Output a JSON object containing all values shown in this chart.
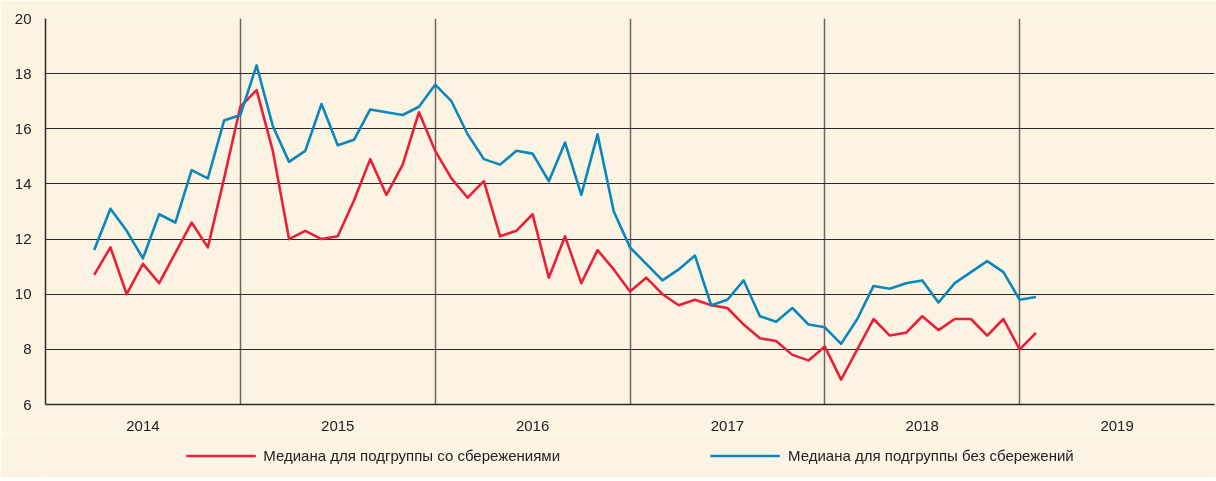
{
  "chart_data": {
    "type": "line",
    "x": [
      "2014-04",
      "2014-05",
      "2014-06",
      "2014-07",
      "2014-08",
      "2014-09",
      "2014-10",
      "2014-11",
      "2014-12",
      "2015-01",
      "2015-02",
      "2015-03",
      "2015-04",
      "2015-05",
      "2015-06",
      "2015-07",
      "2015-08",
      "2015-09",
      "2015-10",
      "2015-11",
      "2015-12",
      "2016-01",
      "2016-02",
      "2016-03",
      "2016-04",
      "2016-05",
      "2016-06",
      "2016-07",
      "2016-08",
      "2016-09",
      "2016-10",
      "2016-11",
      "2016-12",
      "2017-01",
      "2017-02",
      "2017-03",
      "2017-04",
      "2017-05",
      "2017-06",
      "2017-07",
      "2017-08",
      "2017-09",
      "2017-10",
      "2017-11",
      "2017-12",
      "2018-01",
      "2018-02",
      "2018-03",
      "2018-04",
      "2018-05",
      "2018-06",
      "2018-07",
      "2018-08",
      "2018-09",
      "2018-10",
      "2018-11",
      "2018-12",
      "2019-01",
      "2019-02"
    ],
    "series": [
      {
        "name": "Медиана для подгруппы со сбережениями",
        "color": "#e8203a",
        "values": [
          10.7,
          11.7,
          10.0,
          11.1,
          10.4,
          11.5,
          12.6,
          11.7,
          14.2,
          16.8,
          17.4,
          15.2,
          12.0,
          12.3,
          12.0,
          12.1,
          13.4,
          14.9,
          13.6,
          14.7,
          16.6,
          15.2,
          14.2,
          13.5,
          14.1,
          12.1,
          12.3,
          12.9,
          10.6,
          12.1,
          10.4,
          11.6,
          10.9,
          10.1,
          10.6,
          10.0,
          9.6,
          9.8,
          9.6,
          9.5,
          8.9,
          8.4,
          8.3,
          7.8,
          7.6,
          8.1,
          6.9,
          8.0,
          9.1,
          8.5,
          8.6,
          9.2,
          8.7,
          9.1,
          9.1,
          8.5,
          9.1,
          8.0,
          8.6
        ]
      },
      {
        "name": "Медиана для подгруппы без сбережений",
        "color": "#0a87bd",
        "values": [
          11.6,
          13.1,
          12.3,
          11.3,
          12.9,
          12.6,
          14.5,
          14.2,
          16.3,
          16.5,
          18.3,
          16.1,
          14.8,
          15.2,
          16.9,
          15.4,
          15.6,
          16.7,
          16.6,
          16.5,
          16.8,
          17.6,
          17.0,
          15.8,
          14.9,
          14.7,
          15.2,
          15.1,
          14.1,
          15.5,
          13.6,
          15.8,
          13.0,
          11.7,
          11.1,
          10.5,
          10.9,
          11.4,
          9.6,
          9.8,
          10.5,
          9.2,
          9.0,
          9.5,
          8.9,
          8.8,
          8.2,
          9.1,
          10.3,
          10.2,
          10.4,
          10.5,
          9.7,
          10.4,
          10.8,
          11.2,
          10.8,
          9.8,
          9.9
        ]
      }
    ],
    "xlim": [
      "2014",
      "2020"
    ],
    "xticks": [
      {
        "value": "2014",
        "label": null
      },
      {
        "value": "2014-07-01",
        "label": "2014"
      },
      {
        "value": "2015",
        "label": null
      },
      {
        "value": "2015-07-01",
        "label": "2015"
      },
      {
        "value": "2016",
        "label": null
      },
      {
        "value": "2016-07-01",
        "label": "2016"
      },
      {
        "value": "2017",
        "label": null
      },
      {
        "value": "2017-07-01",
        "label": "2017"
      },
      {
        "value": "2018",
        "label": null
      },
      {
        "value": "2018-07-01",
        "label": "2018"
      },
      {
        "value": "2019",
        "label": null
      },
      {
        "value": "2019-07-01",
        "label": "2019"
      }
    ],
    "ylim": [
      6,
      20
    ],
    "yticks": [
      6,
      8,
      10,
      12,
      14,
      16,
      18,
      20
    ],
    "grid": true,
    "legend": "bottom",
    "marker": "none",
    "line_style": "solid"
  }
}
